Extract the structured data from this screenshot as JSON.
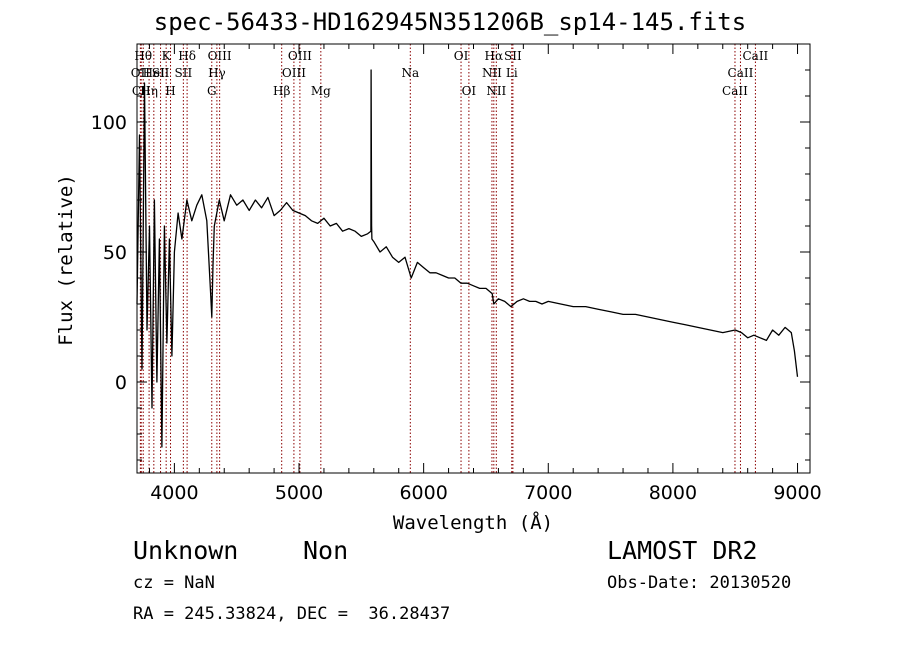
{
  "chart_data": {
    "type": "line",
    "title": "spec-56433-HD162945N351206B_sp14-145.fits",
    "xlabel": "Wavelength (Å)",
    "ylabel": "Flux (relative)",
    "xlim": [
      3700,
      9100
    ],
    "ylim": [
      -35,
      130
    ],
    "x_ticks": [
      4000,
      5000,
      6000,
      7000,
      8000,
      9000
    ],
    "y_ticks": [
      0,
      50,
      100
    ],
    "grid": false,
    "legend": "none",
    "series": [
      {
        "color": "#000000",
        "x": [
          3700,
          3720,
          3740,
          3760,
          3780,
          3800,
          3820,
          3840,
          3860,
          3880,
          3900,
          3920,
          3940,
          3960,
          3980,
          4000,
          4030,
          4060,
          4100,
          4140,
          4180,
          4220,
          4260,
          4290,
          4300,
          4310,
          4320,
          4360,
          4400,
          4450,
          4500,
          4550,
          4600,
          4650,
          4700,
          4750,
          4800,
          4850,
          4900,
          4950,
          5000,
          5050,
          5100,
          5150,
          5200,
          5250,
          5300,
          5350,
          5400,
          5450,
          5500,
          5550,
          5577,
          5578,
          5582,
          5585,
          5600,
          5650,
          5700,
          5750,
          5800,
          5850,
          5900,
          5950,
          6000,
          6050,
          6100,
          6150,
          6200,
          6250,
          6300,
          6350,
          6400,
          6450,
          6500,
          6550,
          6563,
          6600,
          6650,
          6700,
          6750,
          6800,
          6850,
          6900,
          6950,
          7000,
          7100,
          7200,
          7300,
          7400,
          7500,
          7600,
          7700,
          7800,
          7900,
          8000,
          8100,
          8200,
          8300,
          8400,
          8500,
          8550,
          8600,
          8650,
          8700,
          8750,
          8800,
          8850,
          8900,
          8950,
          8975,
          9000
        ],
        "y": [
          30,
          95,
          5,
          115,
          20,
          60,
          -10,
          70,
          0,
          55,
          -25,
          60,
          15,
          55,
          10,
          50,
          65,
          55,
          70,
          62,
          68,
          72,
          62,
          35,
          25,
          45,
          60,
          70,
          62,
          72,
          68,
          70,
          66,
          70,
          67,
          71,
          64,
          66,
          69,
          66,
          65,
          64,
          62,
          61,
          63,
          60,
          61,
          58,
          59,
          58,
          56,
          57,
          58,
          120,
          60,
          55,
          54,
          50,
          52,
          48,
          46,
          48,
          40,
          46,
          44,
          42,
          42,
          41,
          40,
          40,
          38,
          38,
          37,
          36,
          36,
          34,
          30,
          32,
          31,
          29,
          31,
          32,
          31,
          31,
          30,
          31,
          30,
          29,
          29,
          28,
          27,
          26,
          26,
          25,
          24,
          23,
          22,
          21,
          20,
          19,
          20,
          19,
          17,
          18,
          17,
          16,
          20,
          18,
          21,
          19,
          12,
          2
        ]
      }
    ],
    "line_markers": [
      {
        "wave": 3727,
        "label": "OII",
        "row": 2
      },
      {
        "wave": 3734,
        "label": "CII",
        "row": 3
      },
      {
        "wave": 3750,
        "label": "Hθ",
        "row": 1
      },
      {
        "wave": 3797,
        "label": "Hη",
        "row": 3
      },
      {
        "wave": 3835,
        "label": "HeI",
        "row": 2
      },
      {
        "wave": 3889,
        "label": "SII",
        "row": 2
      },
      {
        "wave": 3934,
        "label": "K",
        "row": 1
      },
      {
        "wave": 3969,
        "label": "H",
        "row": 3
      },
      {
        "wave": 4072,
        "label": "SII",
        "row": 2
      },
      {
        "wave": 4102,
        "label": "Hδ",
        "row": 1
      },
      {
        "wave": 4300,
        "label": "G",
        "row": 3
      },
      {
        "wave": 4341,
        "label": "Hγ",
        "row": 2
      },
      {
        "wave": 4363,
        "label": "OIII",
        "row": 1
      },
      {
        "wave": 4861,
        "label": "Hβ",
        "row": 3
      },
      {
        "wave": 4959,
        "label": "OIII",
        "row": 2
      },
      {
        "wave": 5007,
        "label": "OIII",
        "row": 1
      },
      {
        "wave": 5175,
        "label": "Mg",
        "row": 3
      },
      {
        "wave": 5893,
        "label": "Na",
        "row": 2
      },
      {
        "wave": 6300,
        "label": "OI",
        "row": 1
      },
      {
        "wave": 6363,
        "label": "OI",
        "row": 3
      },
      {
        "wave": 6548,
        "label": "NII",
        "row": 2
      },
      {
        "wave": 6563,
        "label": "Hα",
        "row": 1
      },
      {
        "wave": 6583,
        "label": "NII",
        "row": 3
      },
      {
        "wave": 6707,
        "label": "Li",
        "row": 2
      },
      {
        "wave": 6716,
        "label": "SII",
        "row": 1
      },
      {
        "wave": 8498,
        "label": "CaII",
        "row": 3
      },
      {
        "wave": 8542,
        "label": "CaII",
        "row": 2
      },
      {
        "wave": 8662,
        "label": "CaII",
        "row": 1
      }
    ]
  },
  "info": {
    "object_class": "Unknown",
    "object_subclass": "Non",
    "survey": "LAMOST DR2",
    "cz": "cz = NaN",
    "obs_date": "Obs-Date: 20130520",
    "radec": "RA = 245.33824, DEC =  36.28437"
  }
}
